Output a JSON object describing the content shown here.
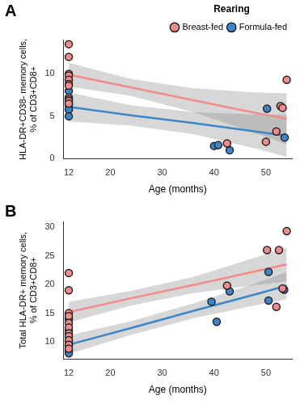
{
  "chart_data": [
    {
      "type": "scatter",
      "panel": "A",
      "x_label": "Age (months)",
      "y_label": [
        "HLA-DR+CD38- memory cells,",
        "% of CD3+CD8+"
      ],
      "xlim": [
        11,
        55
      ],
      "xticks": [
        12,
        20,
        30,
        40,
        50
      ],
      "ylim": [
        0,
        14
      ],
      "yticks": [
        0,
        5,
        10
      ],
      "grid": false,
      "legend": "top-right",
      "legend_title": "Rearing",
      "series": [
        {
          "name": "Breast-fed",
          "color": "#f28b8b",
          "x": [
            12,
            12,
            12,
            12,
            12,
            12,
            12,
            12,
            12,
            12,
            12,
            42.5,
            50,
            52,
            52.8,
            53.2,
            54
          ],
          "values": [
            13.5,
            12,
            10,
            9.8,
            9.3,
            8.8,
            8.6,
            7.2,
            7,
            6.8,
            6.5,
            1.8,
            2,
            3.2,
            6.2,
            6,
            9.3
          ],
          "fit_x": [
            12,
            24,
            36,
            48,
            54
          ],
          "fit": [
            9.9,
            8.4,
            6.9,
            5.4,
            4.7
          ],
          "band_lower": [
            8.5,
            7.4,
            5.5,
            3.0,
            1.7
          ],
          "band_upper": [
            11.3,
            9.4,
            8.3,
            7.8,
            7.7
          ]
        },
        {
          "name": "Formula-fed",
          "color": "#3f86c9",
          "x": [
            12,
            12,
            12,
            12,
            12,
            12,
            40,
            40.8,
            43,
            50.2,
            53.6
          ],
          "values": [
            8,
            6.6,
            6.5,
            6.3,
            5.8,
            5,
            1.5,
            1.6,
            1.0,
            5.9,
            2.5
          ],
          "fit_x": [
            12,
            24,
            36,
            48,
            54
          ],
          "fit": [
            6.1,
            5.1,
            4.2,
            3.2,
            2.7
          ],
          "band_lower": [
            4.4,
            3.9,
            2.9,
            1.2,
            0.2
          ],
          "band_upper": [
            7.8,
            6.3,
            5.5,
            5.2,
            5.2
          ]
        }
      ]
    },
    {
      "type": "scatter",
      "panel": "B",
      "x_label": "Age (months)",
      "y_label": [
        "Total HLA-DR+ memory cells,",
        "% of CD3+CD8+"
      ],
      "xlim": [
        11,
        55
      ],
      "xticks": [
        12,
        20,
        30,
        40,
        50
      ],
      "ylim": [
        7,
        31
      ],
      "yticks": [
        10,
        15,
        20,
        25,
        30
      ],
      "grid": false,
      "series": [
        {
          "name": "Breast-fed",
          "color": "#f28b8b",
          "x": [
            12,
            12,
            12,
            12,
            12,
            12,
            12,
            12,
            12,
            12,
            12,
            42.5,
            50.2,
            52,
            52.5,
            53.2,
            54
          ],
          "values": [
            22,
            19,
            15,
            14.5,
            13.3,
            12.5,
            11.5,
            11,
            10.3,
            9.5,
            8.8,
            19.8,
            26,
            16.1,
            26,
            19.3,
            29.3
          ],
          "fit_x": [
            12,
            24,
            36,
            48,
            54
          ],
          "fit": [
            15.2,
            17.6,
            19.9,
            22.3,
            23.5
          ],
          "band_lower": [
            13.4,
            16.3,
            18.5,
            19.9,
            20.5
          ],
          "band_upper": [
            17,
            18.9,
            21.3,
            24.7,
            26.5
          ]
        },
        {
          "name": "Formula-fed",
          "color": "#3f86c9",
          "x": [
            12,
            12,
            12,
            12,
            12,
            12,
            12,
            39.5,
            40.5,
            43,
            50.5,
            50.5,
            53.5
          ],
          "values": [
            14,
            12,
            10.2,
            9.5,
            9.2,
            8.5,
            8,
            17,
            13.5,
            18.8,
            22.2,
            17.2,
            19.1
          ],
          "fit_x": [
            12,
            24,
            36,
            48,
            54
          ],
          "fit": [
            9.5,
            12.4,
            15.4,
            18.3,
            19.8
          ],
          "band_lower": [
            7.9,
            11.2,
            14.1,
            16.4,
            17.4
          ],
          "band_upper": [
            11.1,
            13.6,
            16.7,
            20.2,
            22.2
          ]
        }
      ]
    }
  ]
}
